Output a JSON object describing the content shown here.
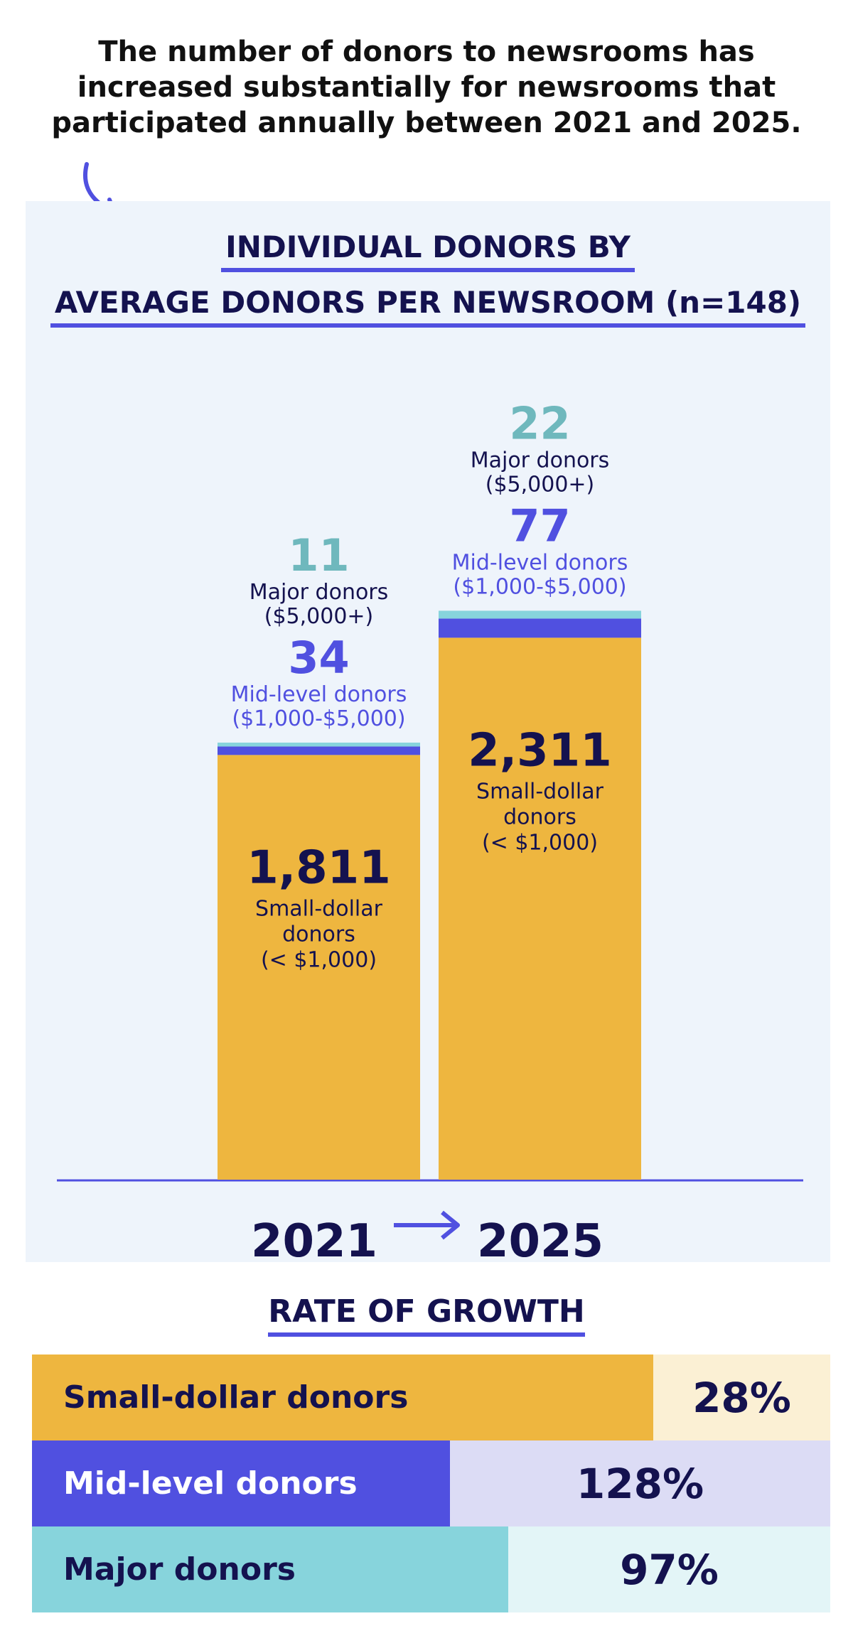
{
  "headline": "The number of donors to newsrooms has increased substantially for newsrooms that participated annually between 2021 and 2025.",
  "chart_data": {
    "type": "bar",
    "stacked": true,
    "title_line1": "INDIVIDUAL DONORS BY",
    "title_line2": "AVERAGE DONORS PER NEWSROOM (n=148)",
    "categories": [
      "2021",
      "2025"
    ],
    "series": [
      {
        "name": "Small-dollar donors",
        "key": "small",
        "range": "(< $1,000)",
        "values": [
          1811,
          2311
        ],
        "labels": [
          "1,811",
          "2,311"
        ],
        "color": "#eeb63f"
      },
      {
        "name": "Mid-level donors",
        "key": "mid",
        "range": "($1,000-$5,000)",
        "values": [
          34,
          77
        ],
        "labels": [
          "34",
          "77"
        ],
        "color": "#5050e0"
      },
      {
        "name": "Major donors",
        "key": "major",
        "range": "($5,000+)",
        "values": [
          11,
          22
        ],
        "labels": [
          "11",
          "22"
        ],
        "color": "#87d4dc"
      }
    ],
    "small_label_line1": "Small-dollar",
    "small_label_line2": "donors",
    "mid_label": "Mid-level donors",
    "major_label": "Major donors",
    "colors": {
      "major_text": "#6fb8bd",
      "mid_text": "#5050e0",
      "dark_text": "#14124f"
    }
  },
  "growth": {
    "title": "RATE OF GROWTH",
    "rows": [
      {
        "label": "Small-dollar donors",
        "value": "28%",
        "pct": 28,
        "color": "#eeb63f",
        "bg": "#fbf0d4",
        "label_color": "#14124f"
      },
      {
        "label": "Mid-level donors",
        "value": "128%",
        "pct": 128,
        "color": "#5050e0",
        "bg": "#dcdcf5",
        "label_color": "#ffffff"
      },
      {
        "label": "Major donors",
        "value": "97%",
        "pct": 97,
        "color": "#87d4dc",
        "bg": "#e3f5f7",
        "label_color": "#14124f"
      }
    ]
  }
}
